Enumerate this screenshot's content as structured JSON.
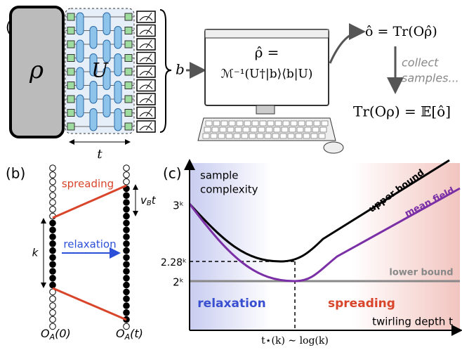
{
  "panel_a": {
    "label": "(a)",
    "state": "ρ",
    "unitary": "U",
    "depth": "t",
    "outcome": "b",
    "estimator": {
      "lhs": "ρ̂ =",
      "rhs": "ℳ⁻¹(U†|b⟩⟨b|U)"
    },
    "observable": "ô = Tr(Oρ̂)",
    "collect": [
      "collect",
      "samples..."
    ],
    "result": "Tr(Oρ) = 𝔼[ô]"
  },
  "panel_b": {
    "label": "(b)",
    "spreading": "spreading",
    "relaxation": "relaxation",
    "size": "k",
    "velocity": {
      "base": "v",
      "sub": "B",
      "tail": "t"
    },
    "left_operator": {
      "base": "O",
      "sub": "A",
      "arg": "(0)"
    },
    "right_operator": {
      "base": "O",
      "sub": "A",
      "arg": "(t)"
    }
  },
  "panel_c": {
    "label": "(c)",
    "y_title": [
      "sample",
      "complexity"
    ],
    "upper": "upper bound",
    "mean": "mean field",
    "lower": "lower bound",
    "tick_top": "3ᵏ",
    "tick_mid": "2.28ᵏ",
    "tick_low": "2ᵏ",
    "relaxation": "relaxation",
    "spreading": "spreading",
    "x_title": "twirling depth t",
    "optimum": "t⋆(k) ∼ log(k)"
  }
}
